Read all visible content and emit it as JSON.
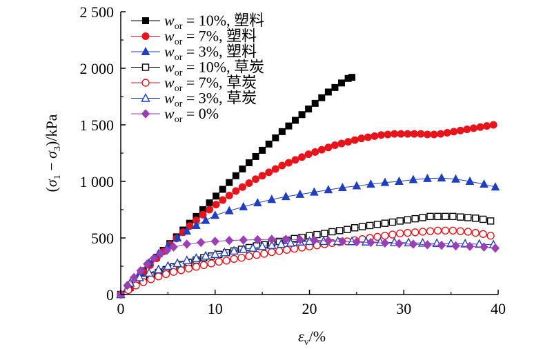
{
  "chart_data": {
    "type": "line",
    "title": "",
    "xlabel": "εv/%",
    "ylabel": "(σ1 − σ3)/kPa",
    "xlim": [
      0,
      40
    ],
    "ylim": [
      0,
      2500
    ],
    "xticks": [
      0,
      10,
      20,
      30,
      40
    ],
    "xtick_labels": [
      "0",
      "10",
      "20",
      "30",
      "40"
    ],
    "yticks": [
      0,
      500,
      1000,
      1500,
      2000,
      2500
    ],
    "ytick_labels": [
      "0",
      "500",
      "1 000",
      "1 500",
      "2 000",
      "2 500"
    ],
    "grid": false,
    "legend_position": "top-left",
    "series": [
      {
        "name": "w_or = 10%, 塑料",
        "legend": {
          "var": "w",
          "sub": "or",
          "rest": " = 10%, 塑料"
        },
        "marker": "square",
        "filled": true,
        "color": "#000000",
        "x": [
          0,
          1,
          1.7,
          2.4,
          3.1,
          3.8,
          4.5,
          5.2,
          5.9,
          6.6,
          7.3,
          8,
          8.7,
          9.4,
          10.1,
          10.8,
          11.5,
          12.2,
          12.9,
          13.6,
          14.3,
          15,
          15.7,
          16.4,
          17.1,
          17.8,
          18.5,
          19.2,
          19.9,
          20.6,
          21.3,
          22,
          22.7,
          23.4,
          24.1,
          24.5
        ],
        "y": [
          0,
          60,
          130,
          210,
          270,
          330,
          390,
          450,
          510,
          570,
          630,
          690,
          750,
          810,
          870,
          930,
          990,
          1050,
          1110,
          1165,
          1220,
          1275,
          1330,
          1385,
          1440,
          1490,
          1540,
          1590,
          1640,
          1690,
          1740,
          1790,
          1830,
          1870,
          1910,
          1920
        ]
      },
      {
        "name": "w_or = 7%, 塑料",
        "legend": {
          "var": "w",
          "sub": "or",
          "rest": " = 7%, 塑料"
        },
        "marker": "circle",
        "filled": true,
        "color": "#e8141b",
        "x": [
          0,
          1,
          1.7,
          2.4,
          3.1,
          3.8,
          4.5,
          5.2,
          5.9,
          6.6,
          7.3,
          8,
          8.7,
          9.4,
          10.1,
          10.8,
          11.5,
          12.2,
          12.9,
          13.6,
          14.3,
          15,
          15.7,
          16.4,
          17.1,
          17.8,
          18.5,
          19.2,
          19.9,
          20.6,
          21.3,
          22,
          22.7,
          23.4,
          24.1,
          24.8,
          25.5,
          26.2,
          26.9,
          27.6,
          28.3,
          29,
          29.7,
          30.4,
          31.1,
          31.8,
          32.5,
          33.2,
          33.9,
          34.6,
          35.3,
          36,
          36.7,
          37.4,
          38.1,
          38.8,
          39.5
        ],
        "y": [
          0,
          60,
          130,
          200,
          260,
          320,
          380,
          440,
          495,
          550,
          605,
          655,
          705,
          750,
          795,
          835,
          875,
          915,
          950,
          985,
          1020,
          1050,
          1080,
          1110,
          1140,
          1165,
          1190,
          1215,
          1240,
          1260,
          1280,
          1300,
          1320,
          1335,
          1350,
          1365,
          1380,
          1390,
          1400,
          1410,
          1415,
          1420,
          1420,
          1420,
          1420,
          1420,
          1415,
          1415,
          1420,
          1430,
          1440,
          1450,
          1460,
          1470,
          1480,
          1490,
          1500
        ]
      },
      {
        "name": "w_or = 3%, 塑料",
        "legend": {
          "var": "w",
          "sub": "or",
          "rest": " = 3%, 塑料"
        },
        "marker": "triangle",
        "filled": true,
        "color": "#1f3fbf",
        "x": [
          0,
          1,
          2,
          3,
          4,
          5,
          6,
          7,
          8,
          9,
          10,
          11.5,
          13,
          14.5,
          16,
          17.5,
          19,
          20.5,
          22,
          23.5,
          25,
          26.5,
          28,
          29.5,
          31,
          32.5,
          34,
          35.5,
          37,
          38.5,
          39.7
        ],
        "y": [
          0,
          90,
          190,
          280,
          360,
          430,
          500,
          560,
          610,
          655,
          700,
          740,
          775,
          810,
          840,
          865,
          885,
          905,
          925,
          945,
          960,
          975,
          990,
          1000,
          1015,
          1025,
          1030,
          1020,
          1000,
          975,
          950
        ]
      },
      {
        "name": "w_or = 10%, 草炭",
        "legend": {
          "var": "w",
          "sub": "or",
          "rest": " = 10%, 草炭"
        },
        "marker": "square",
        "filled": false,
        "color": "#000000",
        "x": [
          0,
          0.8,
          1.6,
          2.4,
          3.2,
          4,
          4.8,
          5.6,
          6.4,
          7.2,
          8,
          8.8,
          9.6,
          10.4,
          11.2,
          12,
          12.8,
          13.6,
          14.4,
          15.2,
          16,
          16.8,
          17.6,
          18.4,
          19.2,
          20,
          20.8,
          21.6,
          22.4,
          23.2,
          24,
          24.8,
          25.6,
          26.4,
          27.2,
          28,
          28.8,
          29.6,
          30.4,
          31.2,
          32,
          32.8,
          33.6,
          34.4,
          35.2,
          36,
          36.8,
          37.6,
          38.4,
          39.2
        ],
        "y": [
          0,
          50,
          100,
          135,
          165,
          195,
          220,
          245,
          265,
          285,
          305,
          325,
          340,
          355,
          370,
          385,
          400,
          415,
          430,
          440,
          455,
          470,
          480,
          495,
          505,
          520,
          530,
          540,
          555,
          565,
          575,
          590,
          600,
          610,
          620,
          630,
          640,
          650,
          660,
          670,
          680,
          690,
          690,
          690,
          690,
          685,
          680,
          675,
          665,
          650
        ]
      },
      {
        "name": "w_or = 7%, 草炭",
        "legend": {
          "var": "w",
          "sub": "or",
          "rest": " = 7%, 草炭"
        },
        "marker": "circle",
        "filled": false,
        "color": "#e8141b",
        "x": [
          0,
          0.8,
          1.6,
          2.4,
          3.2,
          4,
          4.8,
          5.6,
          6.4,
          7.2,
          8,
          8.8,
          9.6,
          10.4,
          11.2,
          12,
          12.8,
          13.6,
          14.4,
          15.2,
          16,
          16.8,
          17.6,
          18.4,
          19.2,
          20,
          20.8,
          21.6,
          22.4,
          23.2,
          24,
          24.8,
          25.6,
          26.4,
          27.2,
          28,
          28.8,
          29.6,
          30.4,
          31.2,
          32,
          32.8,
          33.6,
          34.4,
          35.2,
          36,
          36.8,
          37.6,
          38.4,
          39.2
        ],
        "y": [
          0,
          40,
          80,
          110,
          135,
          160,
          180,
          200,
          215,
          230,
          245,
          260,
          275,
          290,
          300,
          315,
          325,
          340,
          350,
          360,
          375,
          385,
          395,
          405,
          415,
          425,
          435,
          445,
          455,
          465,
          470,
          480,
          490,
          500,
          510,
          520,
          530,
          540,
          545,
          550,
          555,
          560,
          565,
          565,
          565,
          560,
          555,
          545,
          535,
          520
        ]
      },
      {
        "name": "w_or = 3%, 草炭",
        "legend": {
          "var": "w",
          "sub": "or",
          "rest": " = 3%, 草炭"
        },
        "marker": "triangle",
        "filled": false,
        "color": "#1f3fbf",
        "x": [
          0,
          1,
          2,
          3,
          4,
          5,
          6,
          7,
          8,
          9,
          10,
          11,
          12,
          13,
          14,
          15,
          16,
          17,
          18,
          19,
          20,
          21.5,
          23,
          24.5,
          26,
          27.5,
          29,
          30.5,
          32,
          33.5,
          35,
          36.5,
          38,
          39.5
        ],
        "y": [
          0,
          100,
          150,
          190,
          220,
          250,
          275,
          300,
          320,
          340,
          355,
          370,
          385,
          400,
          410,
          425,
          435,
          445,
          455,
          465,
          470,
          470,
          470,
          468,
          465,
          462,
          460,
          458,
          455,
          452,
          450,
          448,
          445,
          440
        ]
      },
      {
        "name": "w_or = 0%",
        "legend": {
          "var": "w",
          "sub": "or",
          "rest": " = 0%"
        },
        "marker": "diamond",
        "filled": true,
        "color": "#9b3fb5",
        "x": [
          0,
          0.7,
          1.4,
          2.1,
          2.8,
          3.5,
          4.2,
          4.9,
          5.6,
          7,
          8.5,
          10,
          11.5,
          13,
          14.5,
          16,
          17.5,
          19,
          20.5,
          22,
          23.5,
          25,
          26.5,
          28,
          29.5,
          31,
          32.5,
          34,
          35.5,
          37,
          38.5,
          39.7
        ],
        "y": [
          0,
          80,
          150,
          210,
          270,
          320,
          360,
          390,
          420,
          445,
          460,
          470,
          478,
          482,
          485,
          487,
          488,
          485,
          480,
          475,
          470,
          465,
          460,
          455,
          450,
          445,
          440,
          435,
          430,
          425,
          420,
          410
        ]
      }
    ]
  }
}
